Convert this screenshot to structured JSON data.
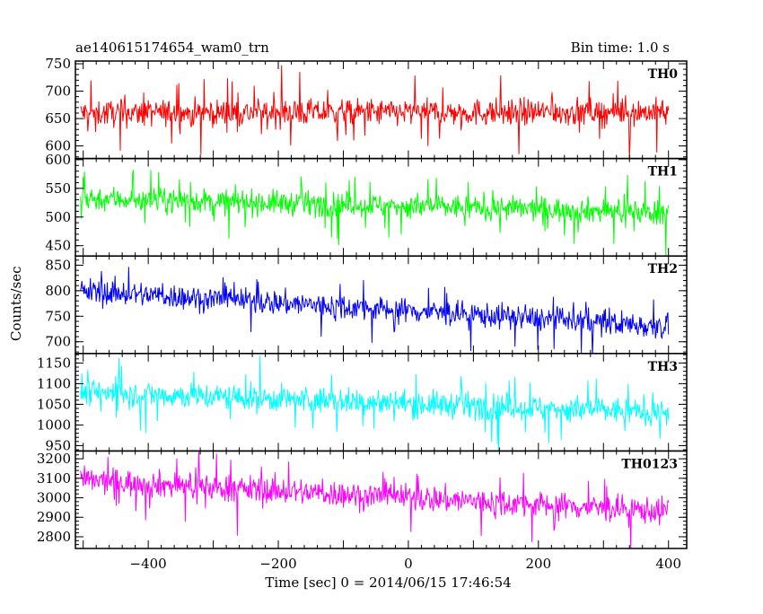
{
  "header": {
    "title": "ae140615174654_wam0_trn",
    "bin_time": "Bin time: 1.0 s"
  },
  "chart_data": {
    "type": "line",
    "ylabel": "Counts/sec",
    "xlabel": "Time [sec] 0 = 2014/06/15 17:46:54",
    "xlim": [
      -512,
      428
    ],
    "x_ticks": [
      -400,
      -200,
      0,
      200,
      400
    ],
    "x_tick_labels": [
      "−400",
      "−200",
      "0",
      "200",
      "400"
    ],
    "x_range_data": [
      -504,
      400
    ],
    "panels": [
      {
        "name": "TH0",
        "color": "#ff0000",
        "ylim": [
          577,
          755
        ],
        "y_ticks": [
          600,
          650,
          700,
          750
        ],
        "mean_start": 660,
        "mean_end": 662,
        "noise": 32,
        "spike": 55
      },
      {
        "name": "TH1",
        "color": "#00ff00",
        "ylim": [
          432,
          602
        ],
        "y_ticks": [
          450,
          500,
          550,
          600
        ],
        "mean_start": 533,
        "mean_end": 508,
        "noise": 28,
        "spike": 50
      },
      {
        "name": "TH2",
        "color": "#0000ff",
        "ylim": [
          677,
          868
        ],
        "y_ticks": [
          700,
          750,
          800,
          850
        ],
        "mean_start": 800,
        "mean_end": 730,
        "noise": 32,
        "spike": 55
      },
      {
        "name": "TH3",
        "color": "#00ffff",
        "ylim": [
          937,
          1173
        ],
        "y_ticks": [
          950,
          1000,
          1050,
          1100,
          1150
        ],
        "mean_start": 1080,
        "mean_end": 1030,
        "noise": 42,
        "spike": 75
      },
      {
        "name": "TH0123",
        "color": "#ff00ff",
        "ylim": [
          2740,
          3240
        ],
        "y_ticks": [
          2800,
          2900,
          3000,
          3100,
          3200
        ],
        "mean_start": 3090,
        "mean_end": 2930,
        "noise": 90,
        "spike": 160
      }
    ]
  }
}
